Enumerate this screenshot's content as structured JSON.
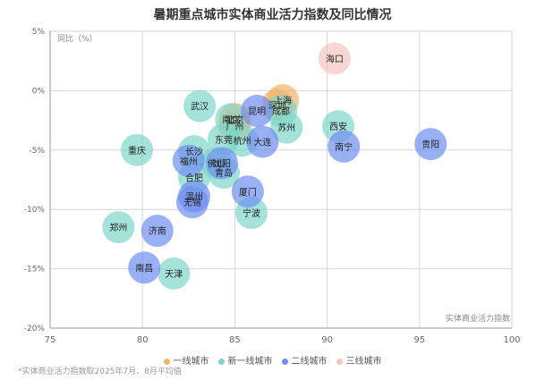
{
  "title": "暑期重点城市实体商业活力指数及同比情况",
  "footnote": "*实体商业活力指数取2025年7月、8月平均值",
  "chart_data": {
    "type": "scatter",
    "title": "暑期重点城市实体商业活力指数及同比情况",
    "xlabel": "实体商业活力指数",
    "ylabel": "同比（%）",
    "xlim": [
      75,
      100
    ],
    "ylim": [
      -20,
      5
    ],
    "x_ticks": [
      "75",
      "80",
      "85",
      "90",
      "95",
      "100"
    ],
    "y_ticks": [
      "5%",
      "0%",
      "-5%",
      "-10%",
      "-15%",
      "-20%"
    ],
    "grid": true,
    "legend_position": "bottom",
    "series": [
      {
        "name": "一线城市",
        "color": "#f2b36b",
        "points": [
          {
            "label": "上海",
            "x": 87.6,
            "y": -0.8
          },
          {
            "label": "深圳",
            "x": 87.3,
            "y": -1.2
          },
          {
            "label": "北京",
            "x": 85.0,
            "y": -2.4
          },
          {
            "label": "广州",
            "x": 85.0,
            "y": -3.0
          }
        ]
      },
      {
        "name": "新一线城市",
        "color": "#7fd6cb",
        "points": [
          {
            "label": "成都",
            "x": 87.5,
            "y": -1.7
          },
          {
            "label": "武汉",
            "x": 83.1,
            "y": -1.3
          },
          {
            "label": "南京",
            "x": 84.8,
            "y": -2.4
          },
          {
            "label": "苏州",
            "x": 87.8,
            "y": -3.1
          },
          {
            "label": "西安",
            "x": 90.6,
            "y": -3.0
          },
          {
            "label": "东莞",
            "x": 84.4,
            "y": -4.1
          },
          {
            "label": "杭州",
            "x": 85.4,
            "y": -4.2
          },
          {
            "label": "重庆",
            "x": 79.7,
            "y": -5.0
          },
          {
            "label": "长沙",
            "x": 82.8,
            "y": -5.1
          },
          {
            "label": "佛山",
            "x": 84.0,
            "y": -6.1
          },
          {
            "label": "青岛",
            "x": 84.4,
            "y": -6.9
          },
          {
            "label": "合肥",
            "x": 82.8,
            "y": -7.3
          },
          {
            "label": "宁波",
            "x": 85.9,
            "y": -10.3
          },
          {
            "label": "郑州",
            "x": 78.7,
            "y": -11.5
          },
          {
            "label": "天津",
            "x": 81.7,
            "y": -15.4
          }
        ]
      },
      {
        "name": "二线城市",
        "color": "#6f8ff0",
        "points": [
          {
            "label": "昆明",
            "x": 86.2,
            "y": -1.7
          },
          {
            "label": "南宁",
            "x": 90.9,
            "y": -4.7
          },
          {
            "label": "贵阳",
            "x": 95.6,
            "y": -4.5
          },
          {
            "label": "大连",
            "x": 86.5,
            "y": -4.3
          },
          {
            "label": "福州",
            "x": 82.5,
            "y": -5.9
          },
          {
            "label": "沈阳",
            "x": 84.3,
            "y": -6.1
          },
          {
            "label": "温州",
            "x": 82.8,
            "y": -8.9
          },
          {
            "label": "无锡",
            "x": 82.7,
            "y": -9.4
          },
          {
            "label": "厦门",
            "x": 85.7,
            "y": -8.5
          },
          {
            "label": "济南",
            "x": 80.8,
            "y": -11.8
          },
          {
            "label": "南昌",
            "x": 80.1,
            "y": -14.9
          }
        ]
      },
      {
        "name": "三线城市",
        "color": "#f5c4bd",
        "points": [
          {
            "label": "海口",
            "x": 90.4,
            "y": 2.7
          }
        ]
      }
    ]
  }
}
